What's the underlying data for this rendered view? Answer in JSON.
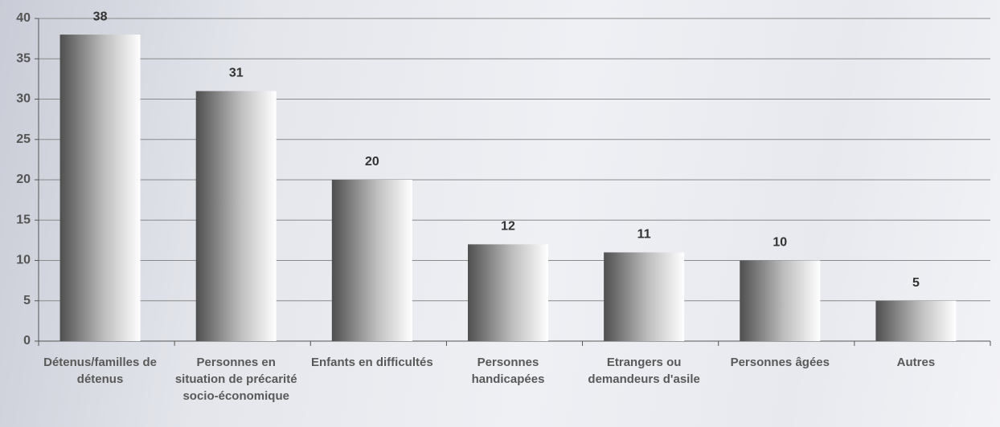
{
  "chart_data": {
    "type": "bar",
    "categories": [
      "Détenus/familles de détenus",
      "Personnes en situation de précarité socio-économique",
      "Enfants en difficultés",
      "Personnes handicapées",
      "Etrangers ou demandeurs d'asile",
      "Personnes âgées",
      "Autres"
    ],
    "values": [
      38,
      31,
      20,
      12,
      11,
      10,
      5
    ],
    "ylim": [
      0,
      40
    ],
    "yticks": [
      0,
      5,
      10,
      15,
      20,
      25,
      30,
      35,
      40
    ],
    "grid": true
  }
}
